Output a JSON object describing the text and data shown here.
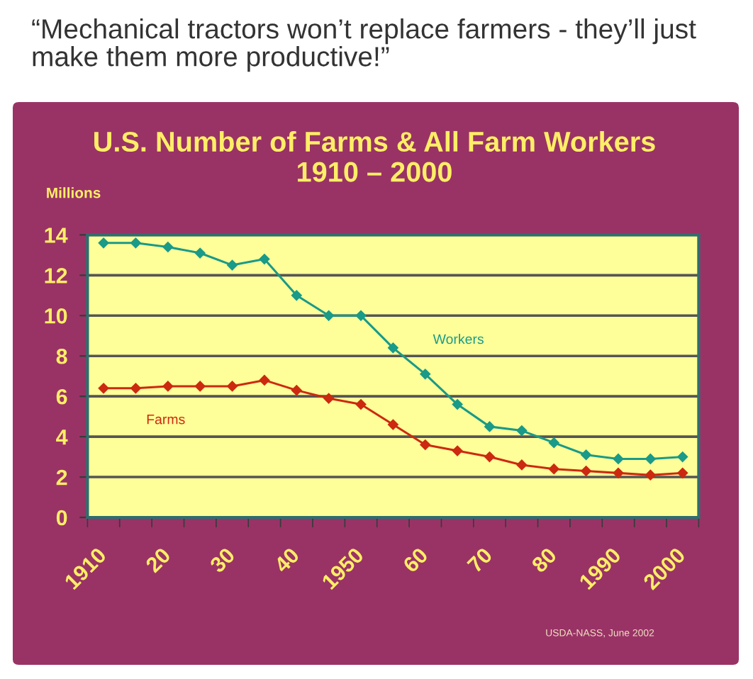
{
  "chart_data": {
    "type": "line",
    "title": "U.S. Number of Farms & All Farm Workers",
    "subtitle": "1910 – 2000",
    "ylabel": "Millions",
    "annotations": [
      "“Mechanical tractors won’t replace farmers - they’ll just make them more productive!”",
      "USDA-NASS, June 2002"
    ],
    "categories": [
      "1910",
      null,
      "20",
      null,
      "30",
      null,
      "40",
      null,
      "1950",
      null,
      "60",
      null,
      "70",
      null,
      "80",
      null,
      "1990",
      null,
      "2000"
    ],
    "series": [
      {
        "name": "Workers",
        "color": "#1a9a88",
        "values": [
          13.6,
          13.6,
          13.4,
          13.1,
          12.5,
          12.8,
          11.0,
          10.0,
          10.0,
          8.4,
          7.1,
          5.6,
          4.5,
          4.3,
          3.7,
          3.1,
          2.9,
          2.9,
          3.0
        ]
      },
      {
        "name": "Farms",
        "color": "#cc2a10",
        "values": [
          6.4,
          6.4,
          6.5,
          6.5,
          6.5,
          6.8,
          6.3,
          5.9,
          5.6,
          4.6,
          3.6,
          3.3,
          3.0,
          2.6,
          2.4,
          2.3,
          2.2,
          2.1,
          2.2
        ]
      }
    ],
    "ylim": [
      0,
      14
    ],
    "yticks": [
      0,
      2,
      4,
      6,
      8,
      10,
      12,
      14
    ],
    "grid": "y",
    "marker": "diamond",
    "line_style": "solid"
  }
}
